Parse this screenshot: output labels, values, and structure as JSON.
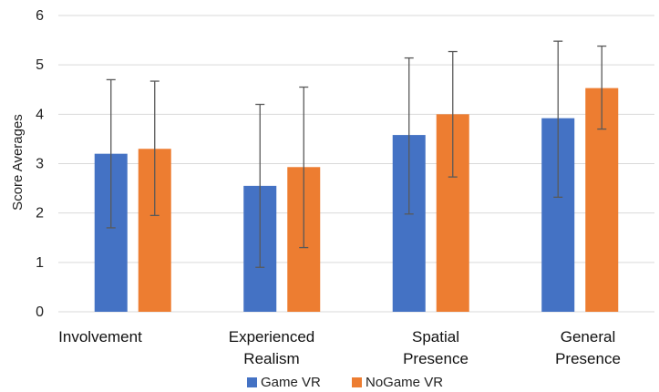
{
  "chart_data": {
    "type": "bar",
    "categories": [
      [
        "Involvement"
      ],
      [
        "Experienced",
        "Realism"
      ],
      [
        "Spatial",
        "Presence"
      ],
      [
        "General",
        "Presence"
      ]
    ],
    "series": [
      {
        "name": "Game VR",
        "color": "#4472C4",
        "values": [
          3.2,
          2.55,
          3.58,
          3.92
        ],
        "error_low": [
          1.7,
          0.9,
          1.98,
          2.32
        ],
        "error_high": [
          4.7,
          4.2,
          5.14,
          5.48
        ]
      },
      {
        "name": "NoGame VR",
        "color": "#ED7D31",
        "values": [
          3.3,
          2.93,
          4.0,
          4.53
        ],
        "error_low": [
          1.95,
          1.3,
          2.73,
          3.7
        ],
        "error_high": [
          4.67,
          4.55,
          5.27,
          5.38
        ]
      }
    ],
    "xlabel": "",
    "ylabel": "Score Averages",
    "ylim": [
      0,
      6
    ],
    "yticks": [
      0,
      1,
      2,
      3,
      4,
      5,
      6
    ],
    "grid": true,
    "legend_position": "bottom"
  }
}
